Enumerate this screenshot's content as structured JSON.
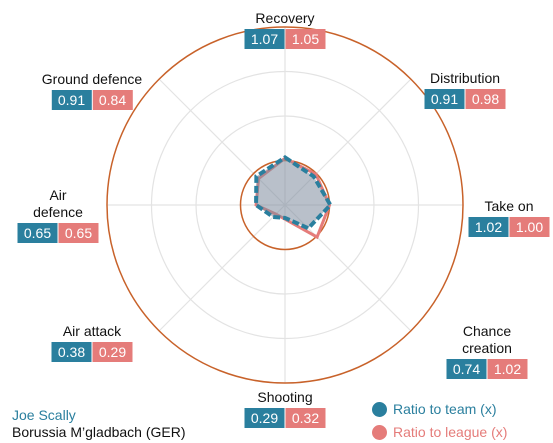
{
  "chart_data": {
    "type": "radar",
    "categories": [
      "Recovery",
      "Distribution",
      "Take on",
      "Chance creation",
      "Shooting",
      "Air attack",
      "Air defence",
      "Ground defence"
    ],
    "series": [
      {
        "name": "Ratio to team (x)",
        "color": "#2a7f9e",
        "values": [
          1.07,
          0.91,
          1.02,
          0.74,
          0.29,
          0.38,
          0.65,
          0.91
        ],
        "value_labels": [
          "1.07",
          "0.91",
          "1.02",
          "0.74",
          "0.29",
          "0.38",
          "0.65",
          "0.91"
        ]
      },
      {
        "name": "Ratio to league (x)",
        "color": "#e57c7a",
        "values": [
          1.05,
          0.98,
          1.0,
          1.02,
          0.32,
          0.29,
          0.65,
          0.84
        ],
        "value_labels": [
          "1.05",
          "0.98",
          "1.00",
          "1.02",
          "0.32",
          "0.29",
          "0.65",
          "0.84"
        ]
      }
    ],
    "rlim": [
      0,
      4
    ],
    "rticks": [
      1,
      2,
      3,
      4
    ],
    "grid": true,
    "player": "Joe Scally",
    "team": "Borussia M’gladbach (GER)"
  }
}
